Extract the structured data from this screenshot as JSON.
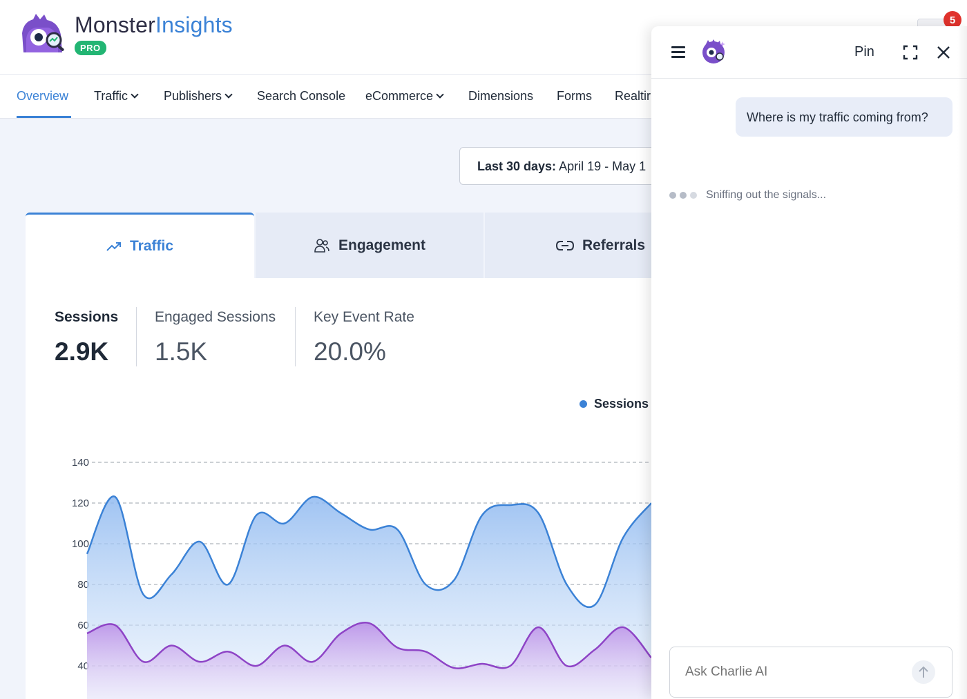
{
  "header": {
    "brand_part1": "Monster",
    "brand_part2": "Insights",
    "badge": "PRO",
    "notification_count": "5"
  },
  "nav": {
    "items": [
      {
        "label": "Overview",
        "active": true
      },
      {
        "label": "Traffic",
        "dropdown": true
      },
      {
        "label": "Publishers",
        "dropdown": true
      },
      {
        "label": "Search Console"
      },
      {
        "label": "eCommerce",
        "dropdown": true
      },
      {
        "label": "Dimensions"
      },
      {
        "label": "Forms"
      },
      {
        "label": "Realtir"
      }
    ]
  },
  "date_range": {
    "prefix": "Last 30 days:",
    "range": " April 19 - May 1"
  },
  "tabs": [
    {
      "label": "Traffic",
      "icon": "trending-up-icon",
      "active": true
    },
    {
      "label": "Engagement",
      "icon": "users-icon"
    },
    {
      "label": "Referrals",
      "icon": "link-icon"
    }
  ],
  "metrics": [
    {
      "label": "Sessions",
      "value": "2.9K",
      "active": true
    },
    {
      "label": "Engaged Sessions",
      "value": "1.5K"
    },
    {
      "label": "Key Event Rate",
      "value": "20.0%"
    }
  ],
  "chart_data": {
    "type": "area",
    "legend": "top-right",
    "series": [
      {
        "name": "Sessions",
        "color": "#3b82d6",
        "values": [
          95,
          123,
          75,
          85,
          101,
          80,
          114,
          110,
          123,
          115,
          107,
          107,
          80,
          82,
          114,
          119,
          115,
          80,
          70,
          103,
          120
        ]
      },
      {
        "name": "",
        "color": "#8e44c6",
        "values": [
          56,
          60,
          42,
          50,
          42,
          47,
          40,
          50,
          42,
          56,
          61,
          49,
          47,
          39,
          41,
          40,
          59,
          40,
          48,
          59,
          44
        ]
      }
    ],
    "x_last": 20,
    "yticks": [
      40,
      60,
      80,
      100,
      120,
      140
    ],
    "ylim": [
      32,
      140
    ],
    "grid": true
  },
  "charlie": {
    "pin_label": "Pin",
    "user_message": "Where is my traffic coming from?",
    "typing_text": "Sniffing out the signals...",
    "input_placeholder": "Ask Charlie AI"
  },
  "colors": {
    "accent": "#3b82d6",
    "pro_green": "#22b573",
    "notification_red": "#e0322c"
  }
}
